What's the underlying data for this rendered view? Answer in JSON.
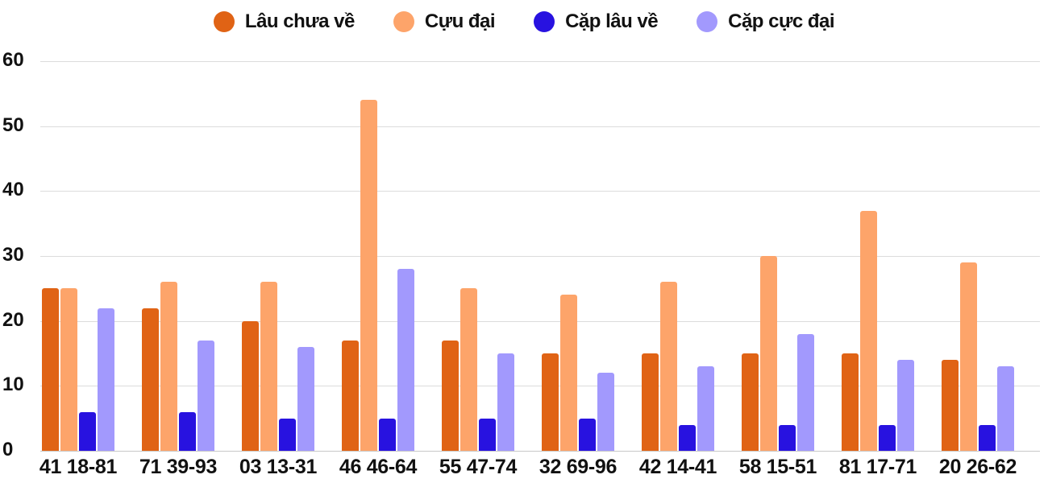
{
  "legend": {
    "items": [
      {
        "label": "Lâu chưa về",
        "color": "#E06315"
      },
      {
        "label": "Cựu đại",
        "color": "#FDA46A"
      },
      {
        "label": "Cặp lâu về",
        "color": "#2812E0"
      },
      {
        "label": "Cặp cực đại",
        "color": "#A299FD"
      }
    ]
  },
  "axis": {
    "y_ticks": [
      "0",
      "10",
      "20",
      "30",
      "40",
      "50",
      "60"
    ]
  },
  "chart_data": {
    "type": "bar",
    "title": "",
    "xlabel": "",
    "ylabel": "",
    "ylim": [
      0,
      60
    ],
    "grid": true,
    "legend_position": "top",
    "categories": [
      "41 18-81",
      "71 39-93",
      "03 13-31",
      "46 46-64",
      "55 47-74",
      "32 69-96",
      "42 14-41",
      "58 15-51",
      "81 17-71",
      "20 26-62"
    ],
    "series": [
      {
        "name": "Lâu chưa về",
        "color": "#E06315",
        "values": [
          25,
          22,
          20,
          17,
          17,
          15,
          15,
          15,
          15,
          14
        ]
      },
      {
        "name": "Cựu đại",
        "color": "#FDA46A",
        "values": [
          25,
          26,
          26,
          54,
          25,
          24,
          26,
          30,
          37,
          29
        ]
      },
      {
        "name": "Cặp lâu về",
        "color": "#2812E0",
        "values": [
          6,
          6,
          5,
          5,
          5,
          5,
          4,
          4,
          4,
          4
        ]
      },
      {
        "name": "Cặp cực đại",
        "color": "#A299FD",
        "values": [
          22,
          17,
          16,
          28,
          15,
          12,
          13,
          18,
          14,
          13
        ]
      }
    ]
  }
}
